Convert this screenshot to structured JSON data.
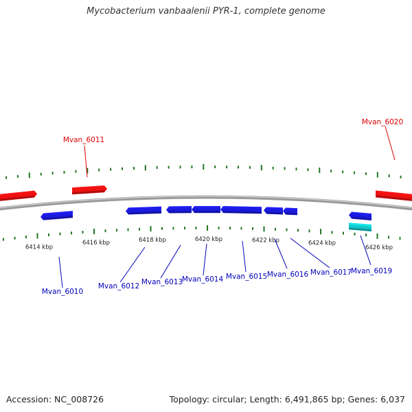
{
  "title": "Mycobacterium vanbaalenii PYR-1, complete genome",
  "footer": {
    "accession": "Accession: NC_008726",
    "stats": "Topology: circular; Length: 6,491,865 bp; Genes: 6,037"
  },
  "colors": {
    "forward_gene": "#ee1111",
    "reverse_gene": "#1a1adf",
    "rna_gene": "#11c8cc",
    "tick": "#227722",
    "backbone": "#888888",
    "forward_label": "#dd0000",
    "reverse_label": "#0000bb"
  },
  "scale": {
    "unit": "kbp",
    "labels": [
      "6414 kbp",
      "6416 kbp",
      "6418 kbp",
      "6420 kbp",
      "6422 kbp",
      "6424 kbp",
      "6426 kbp"
    ]
  },
  "genes": {
    "forward": [
      {
        "label": "",
        "type": "cds"
      },
      {
        "label": "Mvan_6011",
        "type": "cds"
      },
      {
        "label": "Mvan_6020",
        "type": "cds"
      }
    ],
    "reverse": [
      {
        "label": "Mvan_6010",
        "type": "cds"
      },
      {
        "label": "Mvan_6012",
        "type": "cds"
      },
      {
        "label": "Mvan_6013",
        "type": "cds"
      },
      {
        "label": "Mvan_6014",
        "type": "cds"
      },
      {
        "label": "Mvan_6015",
        "type": "cds"
      },
      {
        "label": "Mvan_6016",
        "type": "cds"
      },
      {
        "label": "Mvan_6017",
        "type": "cds"
      },
      {
        "label": "Mvan_6019",
        "type": "cds"
      },
      {
        "label": "",
        "type": "rna"
      }
    ]
  }
}
